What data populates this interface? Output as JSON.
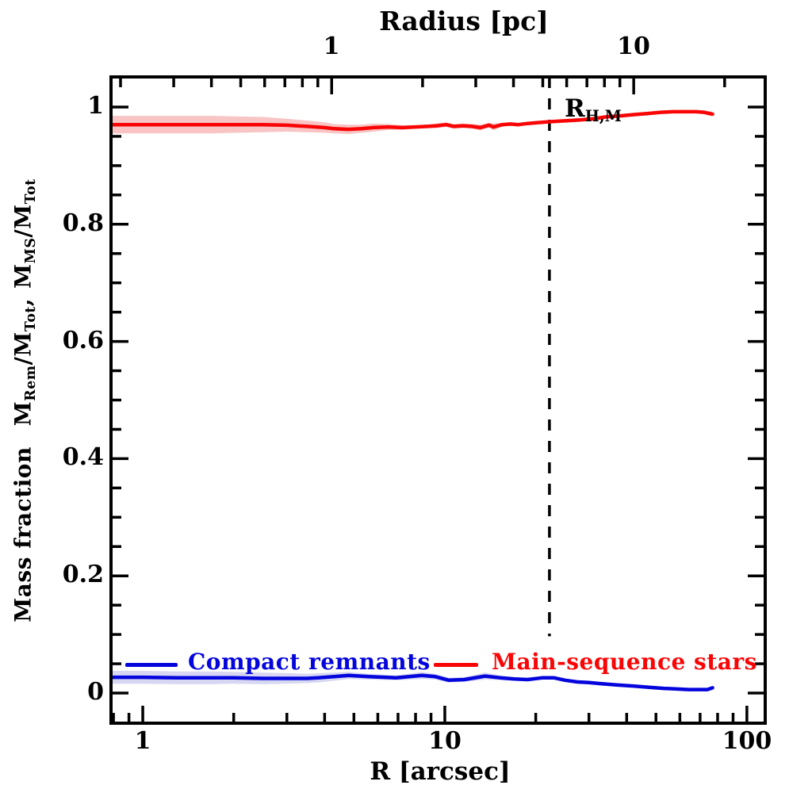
{
  "chart_data": {
    "type": "line",
    "title": "Radius [pc]",
    "xlabel": "R [arcsec]",
    "x_scale": "log",
    "x_range_arcsec": [
      0.785,
      115
    ],
    "y_frame": [
      -0.0514,
      1.0514
    ],
    "ylabel": {
      "word": "Mass fraction",
      "M": "M",
      "rem": "Rem",
      "slashM": "/M",
      "tot": "Tot",
      "comma": ",",
      "ms": "MS"
    },
    "axes": {
      "bottom": {
        "label": "R [arcsec]",
        "major": [
          1,
          10,
          100
        ],
        "major_labels": [
          "1",
          "10",
          "100"
        ],
        "minor": [
          0.8,
          0.9,
          2,
          3,
          4,
          5,
          6,
          7,
          8,
          9,
          20,
          30,
          40,
          50,
          60,
          70,
          80,
          90
        ]
      },
      "top": {
        "label": "Radius [pc]",
        "unit_scale_arcsec_per_pc": 4.22,
        "major": [
          1,
          10
        ],
        "major_labels": [
          "1",
          "10"
        ],
        "minor": [
          0.2,
          0.3,
          0.4,
          0.5,
          0.6,
          0.7,
          0.8,
          0.9,
          2,
          3,
          4,
          5,
          6,
          7,
          8,
          9,
          20
        ]
      },
      "left": {
        "major": [
          0,
          0.2,
          0.4,
          0.6,
          0.8,
          1
        ],
        "major_labels": [
          "0",
          "0.2",
          "0.4",
          "0.6",
          "0.8",
          "1"
        ],
        "minor": [
          0.05,
          0.1,
          0.15,
          0.25,
          0.3,
          0.35,
          0.45,
          0.5,
          0.55,
          0.65,
          0.7,
          0.75,
          0.85,
          0.9,
          0.95
        ]
      }
    },
    "series": [
      {
        "name": "Main-sequence stars",
        "color": "#f90505",
        "band_color": "#f8c4c4",
        "x": [
          0.79,
          1.0,
          1.3,
          1.7,
          2.0,
          2.5,
          3.0,
          3.5,
          4.0,
          4.3,
          4.8,
          5.3,
          5.8,
          6.5,
          7.2,
          8.0,
          8.75,
          9.4,
          10.1,
          10.7,
          11.5,
          12.3,
          13.1,
          14.0,
          14.5,
          15.5,
          16.5,
          17.5,
          18.8,
          20,
          22.2,
          24,
          26,
          28,
          31,
          34,
          38,
          42,
          47,
          52,
          57,
          63,
          68,
          72,
          77
        ],
        "y": [
          0.97,
          0.97,
          0.97,
          0.97,
          0.97,
          0.97,
          0.969,
          0.967,
          0.965,
          0.963,
          0.962,
          0.963,
          0.965,
          0.966,
          0.965,
          0.966,
          0.967,
          0.968,
          0.97,
          0.967,
          0.968,
          0.967,
          0.965,
          0.969,
          0.966,
          0.97,
          0.971,
          0.97,
          0.972,
          0.973,
          0.975,
          0.976,
          0.977,
          0.978,
          0.98,
          0.983,
          0.985,
          0.987,
          0.989,
          0.991,
          0.992,
          0.992,
          0.992,
          0.991,
          0.988
        ],
        "band": [
          0.015,
          0.015,
          0.015,
          0.015,
          0.014,
          0.013,
          0.011,
          0.01,
          0.009,
          0.008,
          0.008,
          0.007,
          0.007,
          0.005,
          0.004,
          0.003,
          0.003,
          0.004,
          0.004,
          0.004,
          0.004,
          0.004,
          0.005,
          0.004,
          0.006,
          0.003,
          0.002,
          0.002,
          0.002,
          0.002,
          0.002,
          0.002,
          0.002,
          0.002,
          0.002,
          0.002,
          0.002,
          0.002,
          0.002,
          0.002,
          0.002,
          0.002,
          0.002,
          0.003,
          0.004
        ]
      },
      {
        "name": "Compact remnants",
        "color": "#0404dd",
        "band_color": "#d7d7f2",
        "x": [
          0.79,
          1.0,
          1.3,
          1.7,
          2.0,
          2.5,
          3.0,
          3.5,
          3.8,
          4.3,
          4.8,
          5.6,
          6.9,
          8.4,
          9.3,
          10.3,
          11.6,
          13.6,
          15.3,
          17,
          18.8,
          21,
          23,
          25,
          27.5,
          30,
          33,
          37,
          42,
          47,
          53,
          58,
          64,
          70,
          74,
          77
        ],
        "y": [
          0.027,
          0.027,
          0.026,
          0.026,
          0.026,
          0.025,
          0.025,
          0.025,
          0.026,
          0.028,
          0.03,
          0.028,
          0.026,
          0.03,
          0.028,
          0.022,
          0.023,
          0.029,
          0.026,
          0.024,
          0.023,
          0.026,
          0.026,
          0.022,
          0.019,
          0.018,
          0.016,
          0.014,
          0.012,
          0.01,
          0.008,
          0.007,
          0.006,
          0.006,
          0.006,
          0.009
        ],
        "band": [
          0.011,
          0.011,
          0.011,
          0.011,
          0.01,
          0.01,
          0.009,
          0.008,
          0.008,
          0.007,
          0.006,
          0.005,
          0.004,
          0.006,
          0.005,
          0.004,
          0.004,
          0.006,
          0.004,
          0.003,
          0.003,
          0.003,
          0.003,
          0.002,
          0.002,
          0.002,
          0.002,
          0.002,
          0.002,
          0.002,
          0.002,
          0.002,
          0.002,
          0.003,
          0.003,
          0.003
        ]
      }
    ],
    "annotation": {
      "dashed_x_arcsec": 22.2,
      "dashed_y_bottom": 0.097,
      "dashed_y_top": 1.0514,
      "label_main": "R",
      "label_sub": "H,M"
    },
    "legend": [
      {
        "label": "Compact remnants",
        "color": "#0404dd"
      },
      {
        "label": "Main-sequence stars",
        "color": "#f90505"
      }
    ],
    "frame_color": "#000000"
  }
}
